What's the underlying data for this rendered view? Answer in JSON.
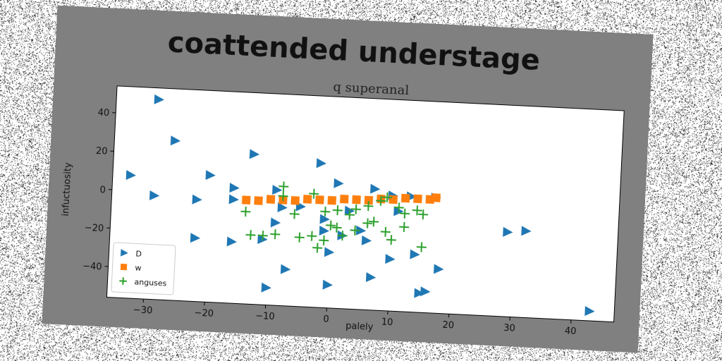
{
  "figure": {
    "suptitle": "coattended understage",
    "title": "q superanal",
    "background_color": "#808080",
    "noise": "salt-and-pepper"
  },
  "chart_data": {
    "type": "scatter",
    "title": "q superanal",
    "xlabel": "palely",
    "ylabel": "infuctuosity",
    "xlim": [
      -36,
      47
    ],
    "ylim": [
      -56,
      54
    ],
    "xticks": [
      -30,
      -20,
      -10,
      0,
      10,
      20,
      30,
      40
    ],
    "yticks": [
      -40,
      -20,
      0,
      20,
      40
    ],
    "grid": false,
    "legend_position": "lower left",
    "series": [
      {
        "name": "D",
        "marker": "triangle-right",
        "color": "#1f77b4",
        "points": [
          [
            -29,
            48
          ],
          [
            -26,
            27
          ],
          [
            -33,
            8
          ],
          [
            -29,
            -2
          ],
          [
            -20,
            10
          ],
          [
            -22,
            -3
          ],
          [
            -22,
            -23
          ],
          [
            -16,
            4
          ],
          [
            -16,
            -2
          ],
          [
            -16,
            -24
          ],
          [
            -13,
            22
          ],
          [
            -11,
            -22
          ],
          [
            -10,
            -47
          ],
          [
            -9,
            -13
          ],
          [
            -9,
            4
          ],
          [
            -8,
            -5
          ],
          [
            -7,
            -37
          ],
          [
            -5,
            -4
          ],
          [
            -2,
            19
          ],
          [
            -1,
            -10
          ],
          [
            -1,
            -16
          ],
          [
            0,
            -44
          ],
          [
            0,
            -27
          ],
          [
            1,
            9
          ],
          [
            2,
            -18
          ],
          [
            3,
            -5
          ],
          [
            5,
            -15
          ],
          [
            6,
            -20
          ],
          [
            7,
            7
          ],
          [
            7,
            -39
          ],
          [
            10,
            4
          ],
          [
            10,
            -29
          ],
          [
            11,
            -4
          ],
          [
            13,
            4
          ],
          [
            14,
            -26
          ],
          [
            15,
            -46
          ],
          [
            16,
            -45
          ],
          [
            17,
            4
          ],
          [
            18,
            -33
          ],
          [
            29,
            -12
          ],
          [
            32,
            -11
          ],
          [
            43,
            -51
          ]
        ]
      },
      {
        "name": "w",
        "marker": "square",
        "color": "#ff7f0e",
        "points": [
          [
            -14,
            -2
          ],
          [
            -12,
            -2
          ],
          [
            -10,
            -1
          ],
          [
            -8,
            -1
          ],
          [
            -6,
            -1
          ],
          [
            -4,
            0
          ],
          [
            -2,
            0
          ],
          [
            0,
            0
          ],
          [
            2,
            1
          ],
          [
            4,
            1
          ],
          [
            6,
            1
          ],
          [
            8,
            2
          ],
          [
            10,
            2
          ],
          [
            12,
            3
          ],
          [
            14,
            3
          ],
          [
            16,
            3
          ],
          [
            17,
            4
          ]
        ]
      },
      {
        "name": "anguses",
        "marker": "plus",
        "color": "#2ca02c",
        "points": [
          [
            -8,
            6
          ],
          [
            -8,
            1
          ],
          [
            -3,
            3
          ],
          [
            -6,
            -8
          ],
          [
            -1,
            -6
          ],
          [
            1,
            -5
          ],
          [
            3,
            -7
          ],
          [
            4,
            -4
          ],
          [
            6,
            -2
          ],
          [
            8,
            1
          ],
          [
            9,
            3
          ],
          [
            11,
            -2
          ],
          [
            12,
            -5
          ],
          [
            14,
            -3
          ],
          [
            15,
            -5
          ],
          [
            -14,
            -8
          ],
          [
            -13,
            -20
          ],
          [
            -11,
            -20
          ],
          [
            -9,
            -19
          ],
          [
            -5,
            -20
          ],
          [
            -3,
            -19
          ],
          [
            -1,
            -21
          ],
          [
            0,
            -13
          ],
          [
            1,
            -14
          ],
          [
            2,
            -18
          ],
          [
            4,
            -15
          ],
          [
            6,
            -11
          ],
          [
            7,
            -10
          ],
          [
            9,
            -15
          ],
          [
            10,
            -19
          ],
          [
            12,
            -12
          ],
          [
            15,
            -22
          ],
          [
            -2,
            -25
          ]
        ]
      }
    ]
  }
}
